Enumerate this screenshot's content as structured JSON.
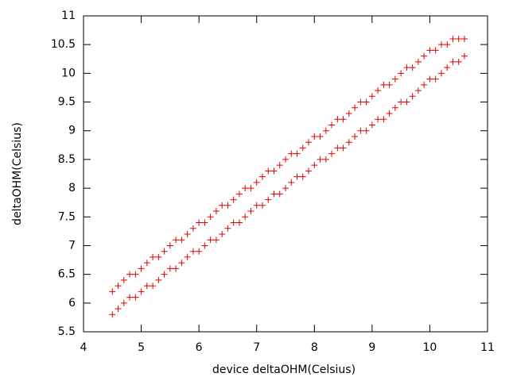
{
  "chart_data": {
    "type": "scatter",
    "xlabel": "device deltaOHM(Celsius)",
    "ylabel": "deltaOHM(Celsius)",
    "xlim": [
      4,
      11
    ],
    "ylim": [
      5.5,
      11
    ],
    "xticks": [
      4,
      5,
      6,
      7,
      8,
      9,
      10,
      11
    ],
    "yticks": [
      5.5,
      6,
      6.5,
      7,
      7.5,
      8,
      8.5,
      9,
      9.5,
      10,
      10.5,
      11
    ],
    "grid": false,
    "color": "#e00000",
    "x": [
      4.5,
      4.6,
      4.7,
      4.8,
      4.9,
      5.0,
      5.1,
      5.2,
      5.3,
      5.4,
      5.5,
      5.6,
      5.7,
      5.8,
      5.9,
      6.0,
      6.1,
      6.2,
      6.3,
      6.4,
      6.5,
      6.6,
      6.7,
      6.8,
      6.9,
      7.0,
      7.1,
      7.2,
      7.3,
      7.4,
      7.5,
      7.6,
      7.7,
      7.8,
      7.9,
      8.0,
      8.1,
      8.2,
      8.3,
      8.4,
      8.5,
      8.6,
      8.7,
      8.8,
      8.9,
      9.0,
      9.1,
      9.2,
      9.3,
      9.4,
      9.5,
      9.6,
      9.7,
      9.8,
      9.9,
      10.0,
      10.1,
      10.2,
      10.3,
      10.4,
      10.5,
      10.6,
      4.5,
      4.6,
      4.7,
      4.8,
      4.9,
      5.0,
      5.1,
      5.2,
      5.3,
      5.4,
      5.5,
      5.6,
      5.7,
      5.8,
      5.9,
      6.0,
      6.1,
      6.2,
      6.3,
      6.4,
      6.5,
      6.6,
      6.7,
      6.8,
      6.9,
      7.0,
      7.1,
      7.2,
      7.3,
      7.4,
      7.5,
      7.6,
      7.7,
      7.8,
      7.9,
      8.0,
      8.1,
      8.2,
      8.3,
      8.4,
      8.5,
      8.6,
      8.7,
      8.8,
      8.9,
      9.0,
      9.1,
      9.2,
      9.3,
      9.4,
      9.5,
      9.6,
      9.7,
      9.8,
      9.9,
      10.0,
      10.1,
      10.2,
      10.3,
      10.4,
      10.5,
      10.6
    ],
    "y": [
      6.2,
      6.3,
      6.4,
      6.5,
      6.5,
      6.6,
      6.7,
      6.8,
      6.8,
      6.9,
      7.0,
      7.1,
      7.1,
      7.2,
      7.3,
      7.4,
      7.4,
      7.5,
      7.6,
      7.7,
      7.7,
      7.8,
      7.9,
      8.0,
      8.0,
      8.1,
      8.2,
      8.3,
      8.3,
      8.4,
      8.5,
      8.6,
      8.6,
      8.7,
      8.8,
      8.9,
      8.9,
      9.0,
      9.1,
      9.2,
      9.2,
      9.3,
      9.4,
      9.5,
      9.5,
      9.6,
      9.7,
      9.8,
      9.8,
      9.9,
      10.0,
      10.1,
      10.1,
      10.2,
      10.3,
      10.4,
      10.4,
      10.5,
      10.5,
      10.6,
      10.6,
      10.6,
      5.8,
      5.9,
      6.0,
      6.1,
      6.1,
      6.2,
      6.3,
      6.3,
      6.4,
      6.5,
      6.6,
      6.6,
      6.7,
      6.8,
      6.9,
      6.9,
      7.0,
      7.1,
      7.1,
      7.2,
      7.3,
      7.4,
      7.4,
      7.5,
      7.6,
      7.7,
      7.7,
      7.8,
      7.9,
      7.9,
      8.0,
      8.1,
      8.2,
      8.2,
      8.3,
      8.4,
      8.5,
      8.5,
      8.6,
      8.7,
      8.7,
      8.8,
      8.9,
      9.0,
      9.0,
      9.1,
      9.2,
      9.2,
      9.3,
      9.4,
      9.5,
      9.5,
      9.6,
      9.7,
      9.8,
      9.9,
      9.9,
      10.0,
      10.1,
      10.2,
      10.2,
      10.3
    ]
  }
}
